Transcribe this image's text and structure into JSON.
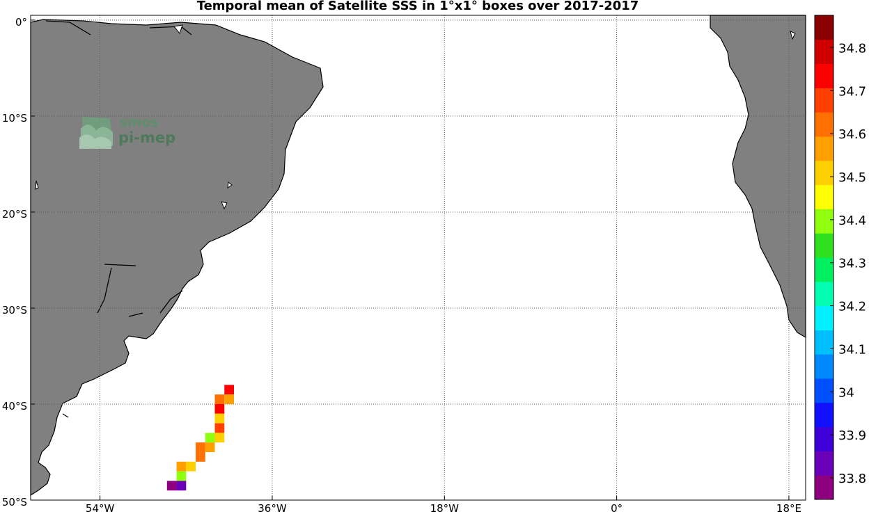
{
  "title": "Temporal mean of Satellite SSS in 1°x1° boxes over 2017-2017",
  "logo": {
    "line1": "smos",
    "line2": "pi-mep"
  },
  "map": {
    "lon_ticks": [
      {
        "label": "54°W",
        "lon": -54
      },
      {
        "label": "36°W",
        "lon": -36
      },
      {
        "label": "18°W",
        "lon": -18
      },
      {
        "label": "0°",
        "lon": 0
      },
      {
        "label": "18°E",
        "lon": 18
      }
    ],
    "lat_ticks": [
      {
        "label": "0°",
        "lat": 0
      },
      {
        "label": "10°S",
        "lat": -10
      },
      {
        "label": "20°S",
        "lat": -20
      },
      {
        "label": "30°S",
        "lat": -30
      },
      {
        "label": "40°S",
        "lat": -40
      },
      {
        "label": "50°S",
        "lat": -50
      }
    ],
    "land_color": "#808080",
    "grid": "dotted"
  },
  "colorbar": {
    "min": 33.75,
    "max": 34.875,
    "step": 0.0625,
    "labels": [
      "34.8",
      "34.7",
      "34.6",
      "34.5",
      "34.4",
      "34.3",
      "34.2",
      "34.1",
      "34",
      "33.9",
      "33.8"
    ],
    "label_values": [
      34.8,
      34.7,
      34.6,
      34.5,
      34.4,
      34.3,
      34.2,
      34.1,
      34.0,
      33.9,
      33.8
    ],
    "colors": [
      "#8e0080",
      "#6a00b8",
      "#3d00d6",
      "#1010ff",
      "#0050ff",
      "#0088ff",
      "#00bfff",
      "#00f0ff",
      "#00ffb0",
      "#00f060",
      "#30e020",
      "#90ff10",
      "#ffff00",
      "#ffd000",
      "#ffa000",
      "#ff7000",
      "#ff4000",
      "#ff0000",
      "#d00000",
      "#8b0000"
    ]
  },
  "sss_boxes": [
    {
      "lon": -40.5,
      "lat": -38.5,
      "sss": 34.87
    },
    {
      "lon": -41.5,
      "lat": -39.5,
      "sss": 34.74
    },
    {
      "lon": -40.5,
      "lat": -39.5,
      "sss": 34.68
    },
    {
      "lon": -41.5,
      "lat": -40.5,
      "sss": 34.87
    },
    {
      "lon": -41.5,
      "lat": -41.5,
      "sss": 34.6
    },
    {
      "lon": -41.5,
      "lat": -42.5,
      "sss": 34.75
    },
    {
      "lon": -42.5,
      "lat": -43.5,
      "sss": 34.47
    },
    {
      "lon": -41.5,
      "lat": -43.5,
      "sss": 34.6
    },
    {
      "lon": -43.5,
      "lat": -44.5,
      "sss": 34.7
    },
    {
      "lon": -42.5,
      "lat": -44.5,
      "sss": 34.68
    },
    {
      "lon": -43.5,
      "lat": -45.5,
      "sss": 34.7
    },
    {
      "lon": -45.5,
      "lat": -46.5,
      "sss": 34.65
    },
    {
      "lon": -44.5,
      "lat": -46.5,
      "sss": 34.6
    },
    {
      "lon": -45.5,
      "lat": -47.5,
      "sss": 34.47
    },
    {
      "lon": -46.5,
      "lat": -48.5,
      "sss": 33.78
    },
    {
      "lon": -45.5,
      "lat": -48.5,
      "sss": 33.85
    }
  ]
}
